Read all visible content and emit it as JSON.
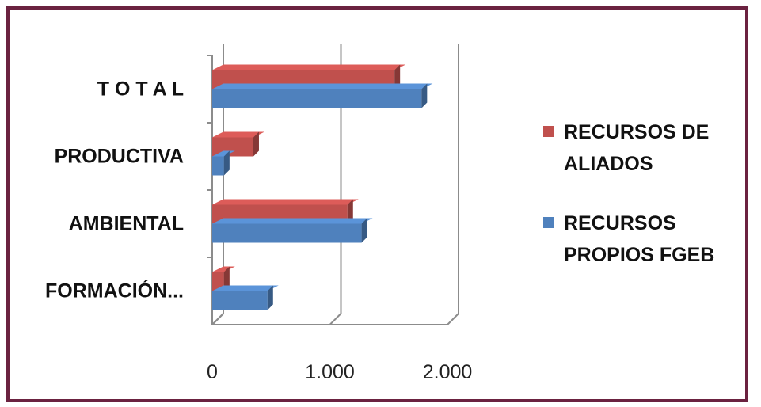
{
  "chart_data": {
    "type": "bar",
    "orientation": "horizontal",
    "style": "3d-clustered",
    "categories": [
      "T O T A L",
      "PRODUCTIVA",
      "AMBIENTAL",
      "FORMACIÓN..."
    ],
    "series": [
      {
        "name": "RECURSOS DE ALIADOS",
        "color": "#c0504d",
        "values": [
          1550,
          350,
          1150,
          100
        ]
      },
      {
        "name": "RECURSOS PROPIOS FGEB",
        "color": "#4f81bd",
        "values": [
          1780,
          100,
          1270,
          470
        ]
      }
    ],
    "xlim": [
      0,
      2000
    ],
    "xticks": [
      "0",
      "1.000",
      "2.000"
    ],
    "tick_values": [
      0,
      1000,
      2000
    ],
    "grid": true,
    "legend_position": "right",
    "title": "",
    "xlabel": "",
    "ylabel": ""
  },
  "colors": {
    "border": "#6b2240",
    "gridline": "#8c8c8c"
  }
}
